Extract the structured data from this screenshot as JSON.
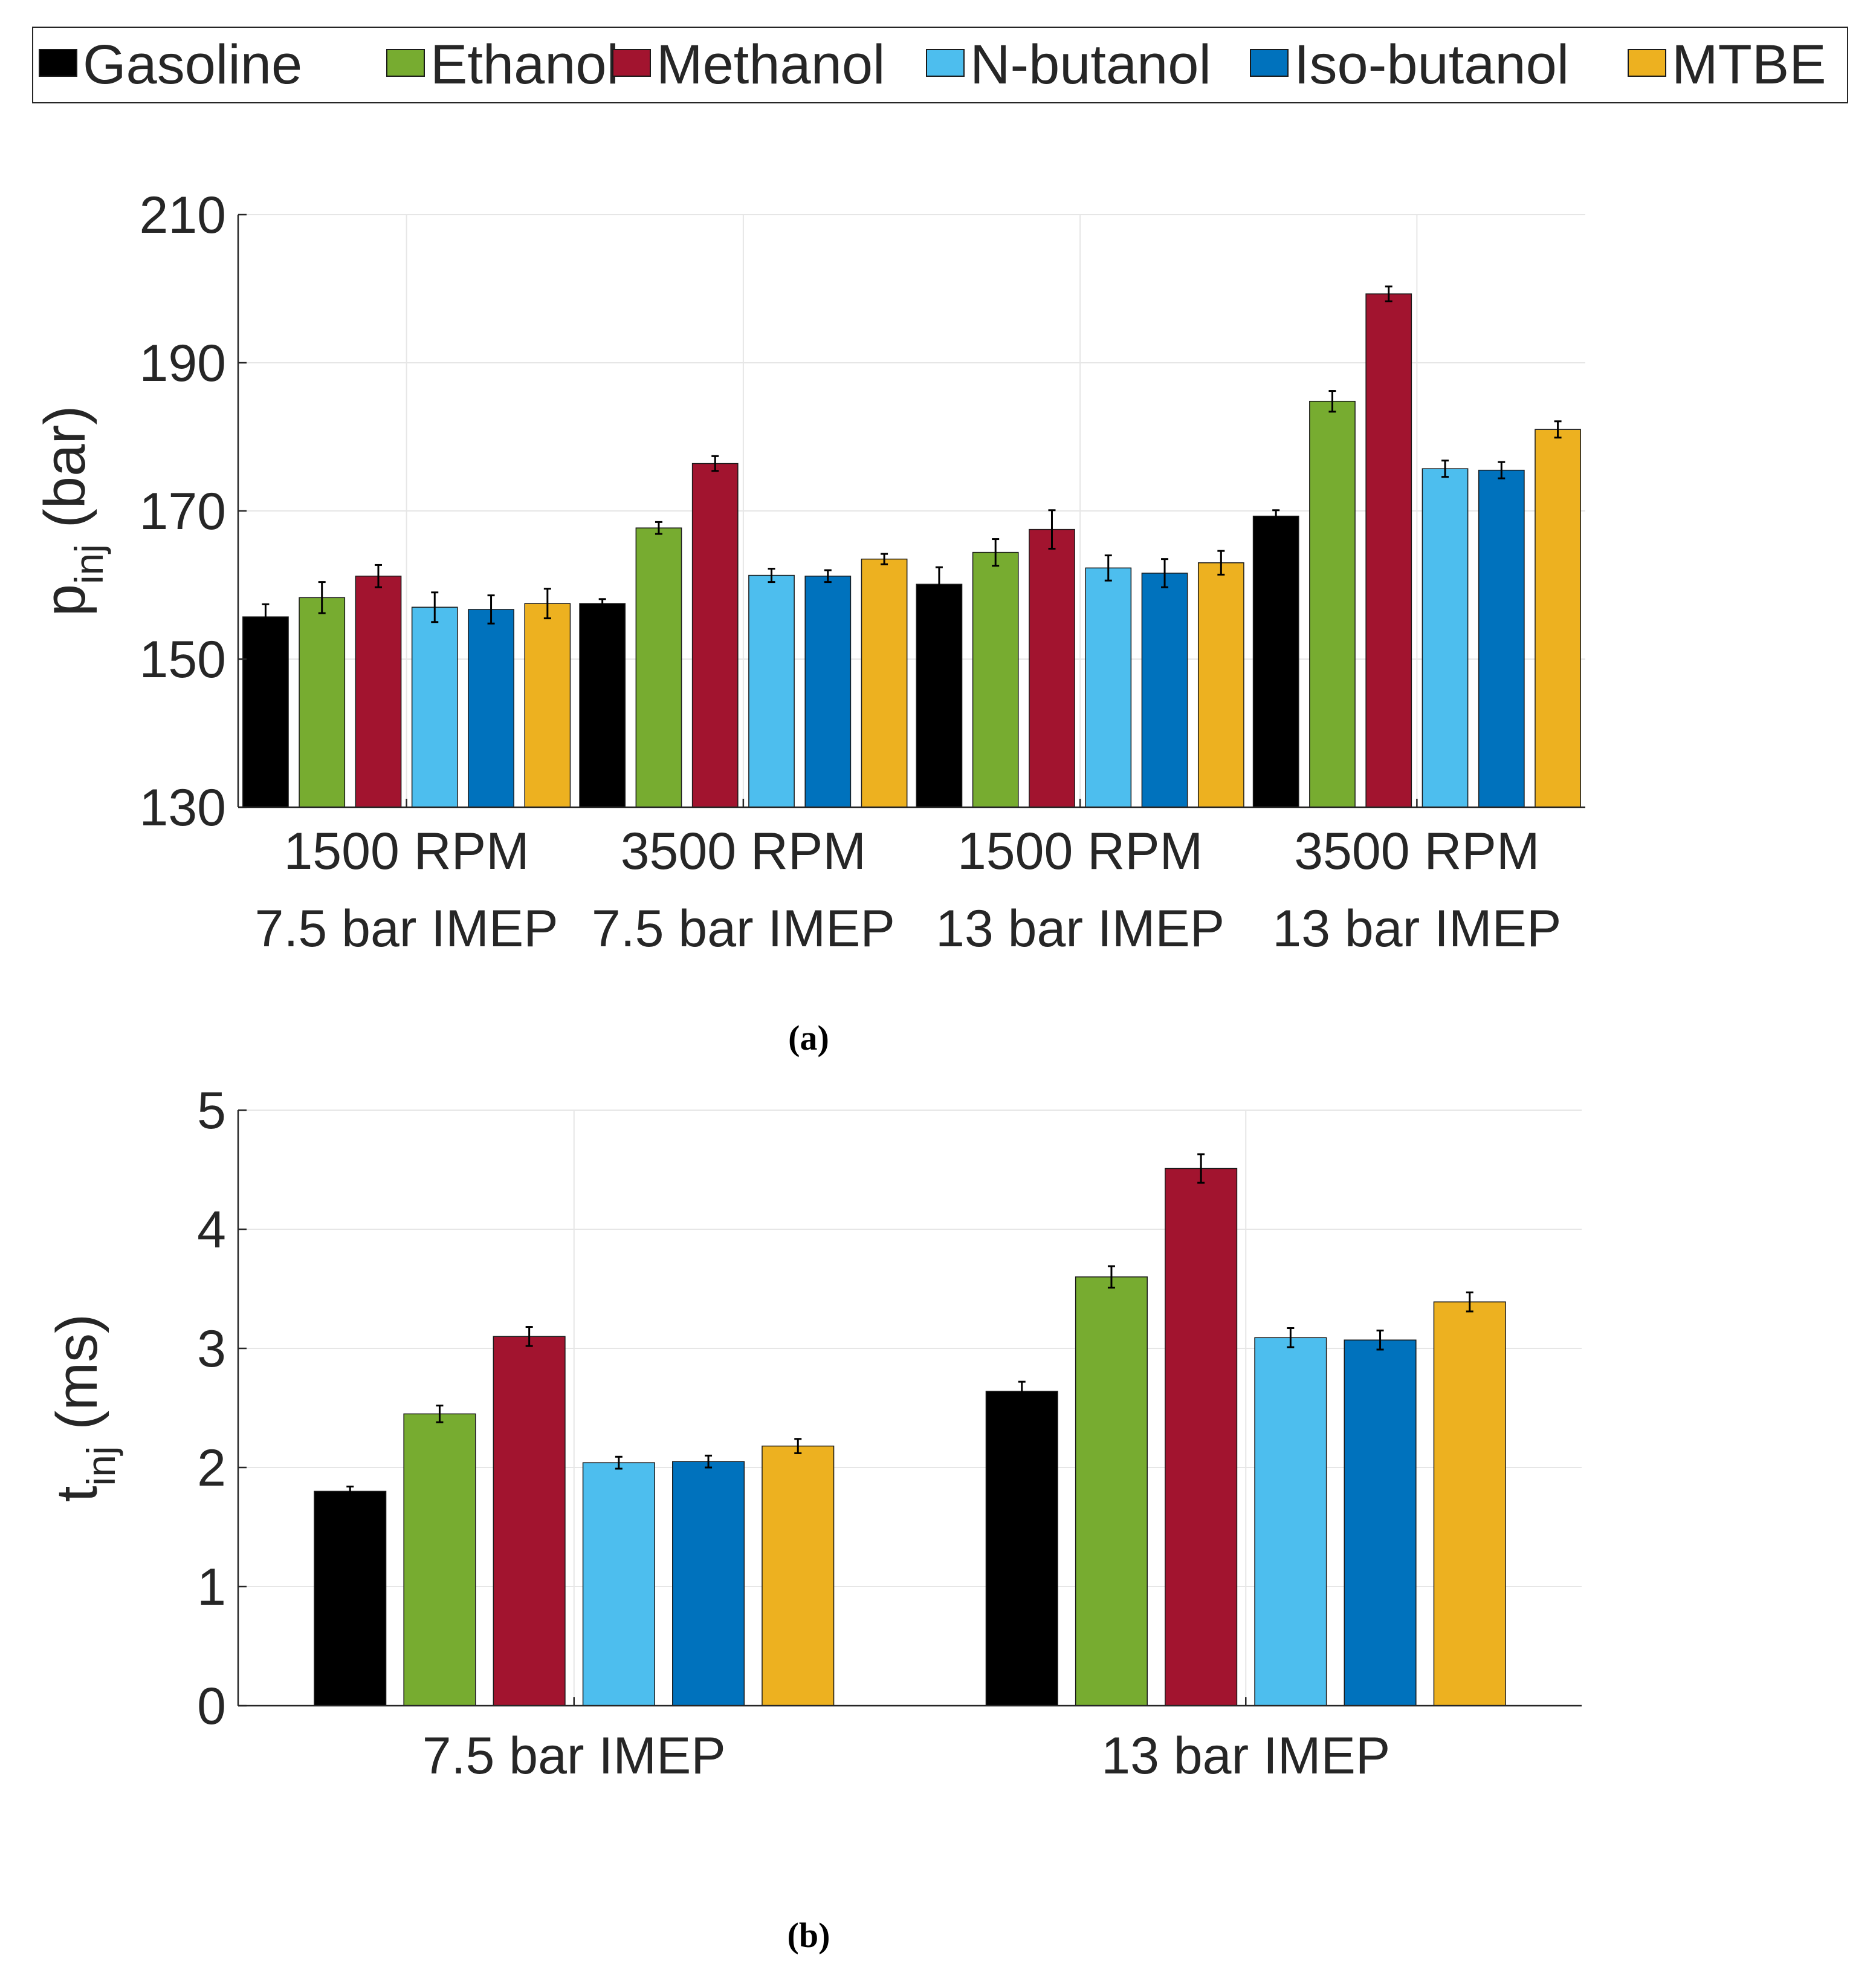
{
  "legend": {
    "entries": [
      {
        "name": "Gasoline",
        "color": "#000000"
      },
      {
        "name": "Ethanol",
        "color": "#77ac30"
      },
      {
        "name": "Methanol",
        "color": "#a2142f"
      },
      {
        "name": "N-butanol",
        "color": "#4dbeee"
      },
      {
        "name": "Iso-butanol",
        "color": "#0072bd"
      },
      {
        "name": "MTBE",
        "color": "#edb120"
      }
    ]
  },
  "chart_data": [
    {
      "type": "bar",
      "caption": "(a)",
      "ylabel": "p",
      "ylabel_subscript": "inj",
      "ylabel_unit": "(bar)",
      "ylim": [
        130,
        210
      ],
      "yticks": [
        130,
        150,
        170,
        190,
        210
      ],
      "grid": true,
      "categories": [
        [
          "1500 RPM",
          "7.5 bar IMEP"
        ],
        [
          "3500 RPM",
          "7.5 bar IMEP"
        ],
        [
          "1500 RPM",
          "13 bar IMEP"
        ],
        [
          "3500 RPM",
          "13 bar IMEP"
        ]
      ],
      "series": [
        {
          "name": "Gasoline",
          "values": [
            155.7,
            157.5,
            160.1,
            169.3
          ],
          "errors": [
            1.7,
            0.6,
            2.3,
            0.8
          ]
        },
        {
          "name": "Ethanol",
          "values": [
            158.3,
            167.7,
            164.4,
            184.8
          ],
          "errors": [
            2.1,
            0.8,
            1.8,
            1.4
          ]
        },
        {
          "name": "Methanol",
          "values": [
            161.2,
            176.4,
            167.5,
            199.3
          ],
          "errors": [
            1.5,
            1.0,
            2.6,
            1.0
          ]
        },
        {
          "name": "N-butanol",
          "values": [
            157.0,
            161.3,
            162.3,
            175.7
          ],
          "errors": [
            2.0,
            0.9,
            1.7,
            1.1
          ]
        },
        {
          "name": "Iso-butanol",
          "values": [
            156.7,
            161.2,
            161.6,
            175.5
          ],
          "errors": [
            1.9,
            0.8,
            1.9,
            1.1
          ]
        },
        {
          "name": "MTBE",
          "values": [
            157.5,
            163.5,
            163.0,
            181.0
          ],
          "errors": [
            2.0,
            0.7,
            1.6,
            1.1
          ]
        }
      ]
    },
    {
      "type": "bar",
      "caption": "(b)",
      "ylabel": "t",
      "ylabel_subscript": "inj",
      "ylabel_unit": "(ms)",
      "ylim": [
        0,
        5
      ],
      "yticks": [
        0,
        1,
        2,
        3,
        4,
        5
      ],
      "grid": true,
      "categories": [
        [
          "7.5 bar IMEP"
        ],
        [
          "13 bar IMEP"
        ]
      ],
      "series": [
        {
          "name": "Gasoline",
          "values": [
            1.8,
            2.64
          ],
          "errors": [
            0.04,
            0.08
          ]
        },
        {
          "name": "Ethanol",
          "values": [
            2.45,
            3.6
          ],
          "errors": [
            0.07,
            0.09
          ]
        },
        {
          "name": "Methanol",
          "values": [
            3.1,
            4.51
          ],
          "errors": [
            0.08,
            0.12
          ]
        },
        {
          "name": "N-butanol",
          "values": [
            2.04,
            3.09
          ],
          "errors": [
            0.05,
            0.08
          ]
        },
        {
          "name": "Iso-butanol",
          "values": [
            2.05,
            3.07
          ],
          "errors": [
            0.05,
            0.08
          ]
        },
        {
          "name": "MTBE",
          "values": [
            2.18,
            3.39
          ],
          "errors": [
            0.06,
            0.08
          ]
        }
      ]
    }
  ]
}
